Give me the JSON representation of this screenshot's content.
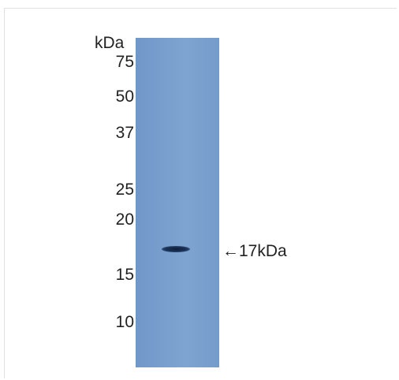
{
  "unit_label": "kDa",
  "markers": [
    "75",
    "50",
    "37",
    "25",
    "20",
    "15",
    "10"
  ],
  "band_annotation": "←17kDa"
}
